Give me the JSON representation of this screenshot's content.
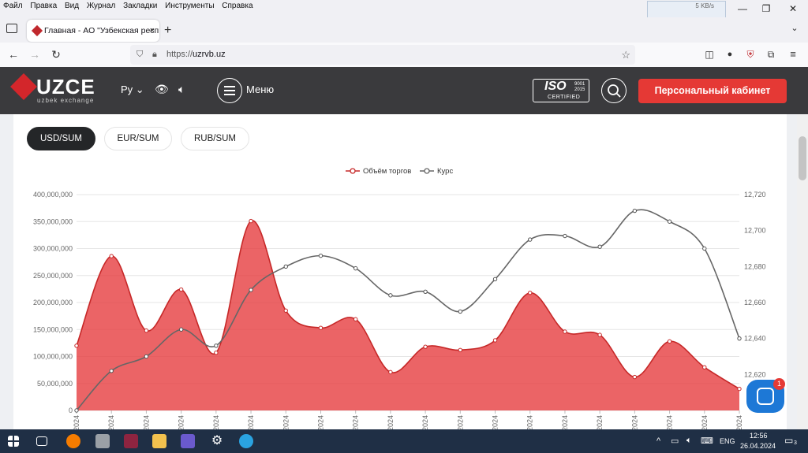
{
  "menubar": [
    "Файл",
    "Правка",
    "Вид",
    "Журнал",
    "Закладки",
    "Инструменты",
    "Справка"
  ],
  "net_widget": "5 KB/s",
  "tab": {
    "title": "Главная - АО \"Узбекская респ",
    "close": "×"
  },
  "new_tab": "+",
  "url": {
    "scheme": "https://",
    "host": "uzrvb.uz"
  },
  "header": {
    "logo": "UZCE",
    "logo_sub": "uzbek exchange",
    "lang": "Ру",
    "menu_label": "Меню",
    "iso_big": "ISO",
    "iso_year": "9001\n2015",
    "iso_cert": "CERTIFIED",
    "cabinet_label": "Персональный кабинет"
  },
  "currency_tabs": [
    {
      "label": "USD/SUM",
      "active": true
    },
    {
      "label": "EUR/SUM",
      "active": false
    },
    {
      "label": "RUB/SUM",
      "active": false
    }
  ],
  "chat_badge": "1",
  "colors": {
    "volume": "#e5393b",
    "rate": "#666666",
    "accent": "#e53935",
    "header_bg": "#3a3a3d"
  },
  "tray": {
    "lang": "ENG",
    "time": "12:56",
    "date": "26.04.2024",
    "notif_count": "3"
  },
  "chart_data": {
    "type": "area",
    "legend_position": "top-center",
    "grid": true,
    "series": [
      {
        "name": "Объём торгов",
        "axis": "left",
        "type": "area",
        "values": [
          120000000,
          286000000,
          148000000,
          224000000,
          107000000,
          351000000,
          185000000,
          153000000,
          169000000,
          71000000,
          118000000,
          112000000,
          130000000,
          218000000,
          146000000,
          140000000,
          62000000,
          128000000,
          80000000,
          40000000
        ]
      },
      {
        "name": "Курс",
        "axis": "right",
        "type": "line",
        "values": [
          12600,
          12622,
          12630,
          12645,
          12636,
          12667,
          12680,
          12686,
          12679,
          12664,
          12666,
          12655,
          12673,
          12695,
          12697,
          12691,
          12711,
          12705,
          12690,
          12640
        ]
      }
    ],
    "y_left": {
      "min": 0,
      "max": 400000000,
      "ticks": [
        "0",
        "50,000,000",
        "100,000,000",
        "150,000,000",
        "200,000,000",
        "250,000,000",
        "300,000,000",
        "350,000,000",
        "400,000,000"
      ]
    },
    "y_right": {
      "min": 12600,
      "max": 12720,
      "ticks": [
        "12,620",
        "12,640",
        "12,660",
        "12,680",
        "12,700",
        "12,720"
      ]
    },
    "x_tick_label": "2024"
  }
}
